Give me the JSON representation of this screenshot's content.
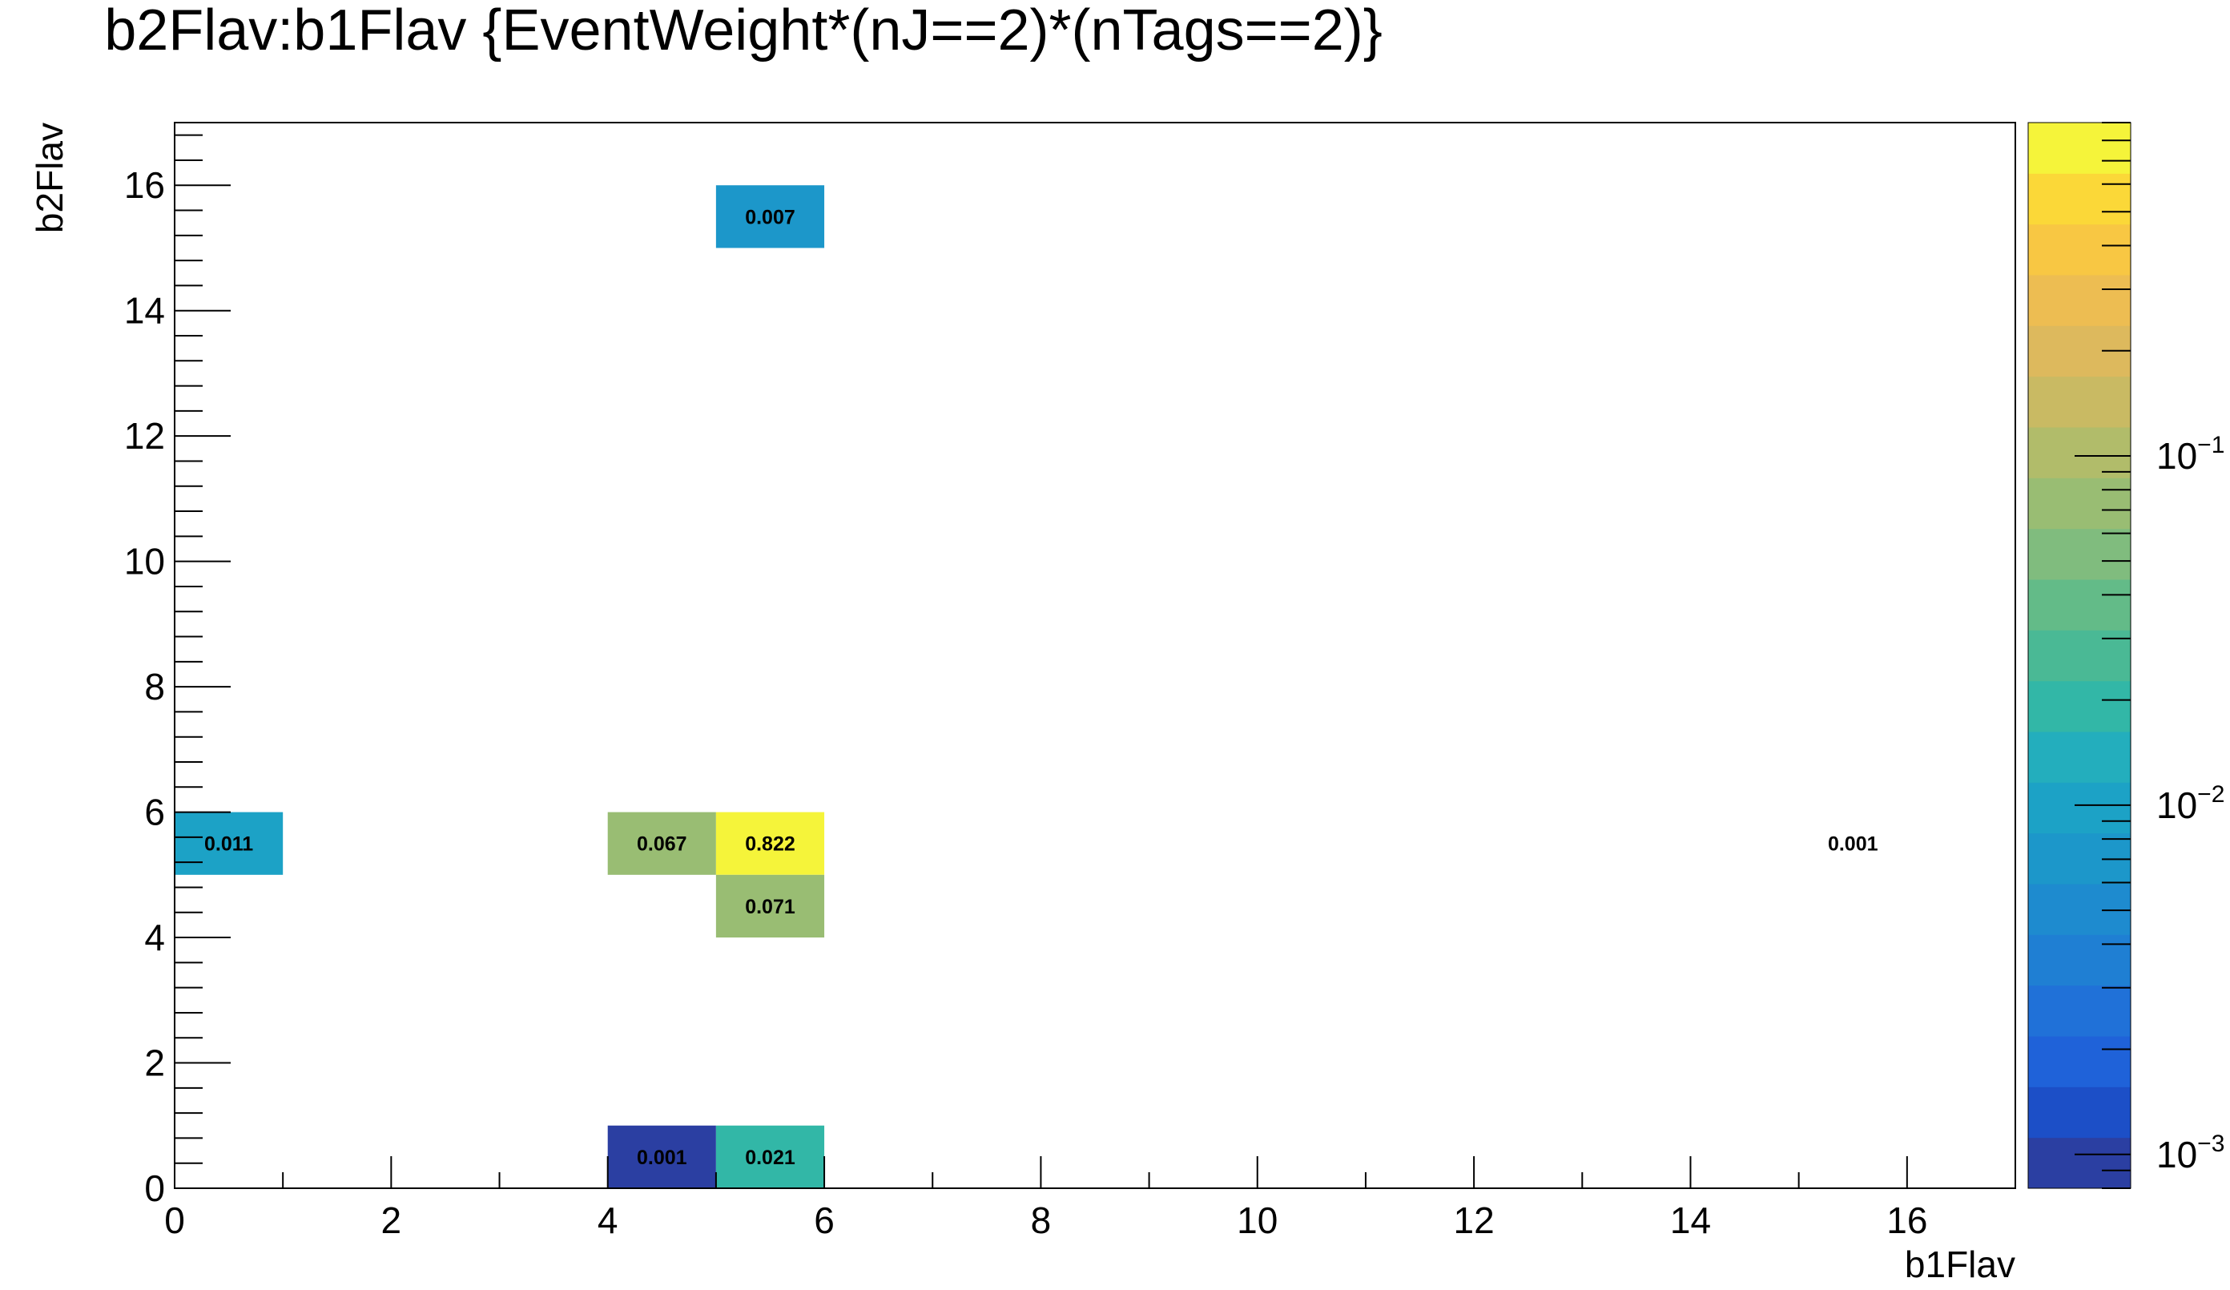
{
  "chart_data": {
    "type": "heatmap",
    "title": "b2Flav:b1Flav {EventWeight*(nJ==2)*(nTags==2)}",
    "xlabel": "b1Flav",
    "ylabel": "b2Flav",
    "xlim": [
      0,
      17
    ],
    "ylim": [
      0,
      17
    ],
    "x_ticks": [
      "0",
      "2",
      "4",
      "6",
      "8",
      "10",
      "12",
      "14",
      "16"
    ],
    "y_ticks": [
      "0",
      "2",
      "4",
      "6",
      "8",
      "10",
      "12",
      "14",
      "16"
    ],
    "z_scale": "log",
    "z_range": [
      0.0008,
      0.9
    ],
    "colorbar_ticks": [
      {
        "base": "10",
        "exp": "−3",
        "value": 0.001
      },
      {
        "base": "10",
        "exp": "−2",
        "value": 0.01
      },
      {
        "base": "10",
        "exp": "−1",
        "value": 0.1
      }
    ],
    "cells": [
      {
        "x": 5,
        "y": 15,
        "value": 0.007,
        "label": "0.007"
      },
      {
        "x": 0,
        "y": 5,
        "value": 0.011,
        "label": "0.011"
      },
      {
        "x": 4,
        "y": 5,
        "value": 0.067,
        "label": "0.067"
      },
      {
        "x": 5,
        "y": 5,
        "value": 0.822,
        "label": "0.822"
      },
      {
        "x": 15,
        "y": 5,
        "value": 0.001,
        "label": "0.001",
        "color_shown": false
      },
      {
        "x": 5,
        "y": 4,
        "value": 0.071,
        "label": "0.071"
      },
      {
        "x": 4,
        "y": 0,
        "value": 0.001,
        "label": "0.001"
      },
      {
        "x": 5,
        "y": 0,
        "value": 0.021,
        "label": "0.021"
      }
    ],
    "palette": [
      "#2b3fa2",
      "#1c4fc7",
      "#1f62d9",
      "#2071d8",
      "#1f7fd3",
      "#1e8bcf",
      "#1c97ca",
      "#1ca2c6",
      "#23aebd",
      "#32b7a7",
      "#4ab995",
      "#63bb88",
      "#80bc7e",
      "#99bd73",
      "#b1bc6a",
      "#c9ba63",
      "#ddb95d",
      "#edbd52",
      "#f8c743",
      "#fbd838",
      "#f5f43a"
    ],
    "grid": false,
    "legend": "none"
  }
}
